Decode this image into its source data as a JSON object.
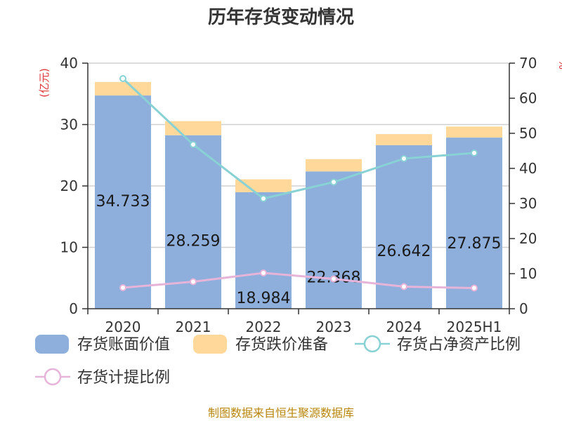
{
  "chart_data": {
    "type": "bar",
    "title": "历年存货变动情况",
    "categories": [
      "2020",
      "2021",
      "2022",
      "2023",
      "2024",
      "2025H1"
    ],
    "y_left": {
      "unit": "(亿元)",
      "range": [
        0,
        40
      ],
      "ticks": [
        "0",
        "10",
        "20",
        "30",
        "40"
      ]
    },
    "y_right": {
      "unit": "%",
      "range": [
        0,
        70
      ],
      "ticks": [
        "0",
        "10",
        "20",
        "30",
        "40",
        "50",
        "60",
        "70"
      ]
    },
    "series": [
      {
        "name": "存货账面价值",
        "kind": "bar",
        "axis": "left",
        "stack": "s",
        "color": "#8eaedb",
        "values": [
          34.733,
          28.259,
          18.984,
          22.368,
          26.642,
          27.875
        ],
        "labels": [
          "34.733",
          "28.259",
          "18.984",
          "22.368",
          "26.642",
          "27.875"
        ]
      },
      {
        "name": "存货跌价准备",
        "kind": "bar",
        "axis": "left",
        "stack": "s",
        "color": "#ffd89a",
        "values": [
          2.2,
          2.3,
          2.1,
          2.0,
          1.8,
          1.8
        ]
      },
      {
        "name": "存货占净资产比例",
        "kind": "line",
        "axis": "right",
        "color": "#88d1d4",
        "values": [
          65.6,
          46.8,
          31.4,
          36.1,
          42.8,
          44.4
        ]
      },
      {
        "name": "存货计提比例",
        "kind": "line",
        "axis": "right",
        "color": "#e6b4d9",
        "values": [
          6.0,
          7.7,
          10.2,
          8.5,
          6.3,
          5.9
        ]
      }
    ],
    "grid": true,
    "legend": "bottom"
  },
  "source": "制图数据来自恒生聚源数据库"
}
